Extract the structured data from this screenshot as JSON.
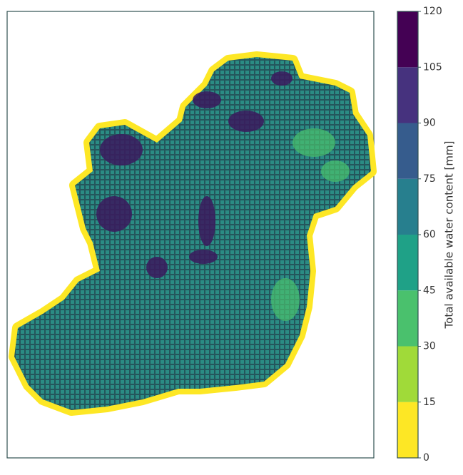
{
  "map": {
    "colorbar": {
      "label": "Total available water content [mm]",
      "ticks": [
        0,
        15,
        30,
        45,
        60,
        75,
        90,
        105,
        120
      ],
      "colors": [
        "#fde725",
        "#a0da39",
        "#4ac16d",
        "#1fa187",
        "#277f8e",
        "#365c8d",
        "#46327e",
        "#440154"
      ]
    }
  }
}
